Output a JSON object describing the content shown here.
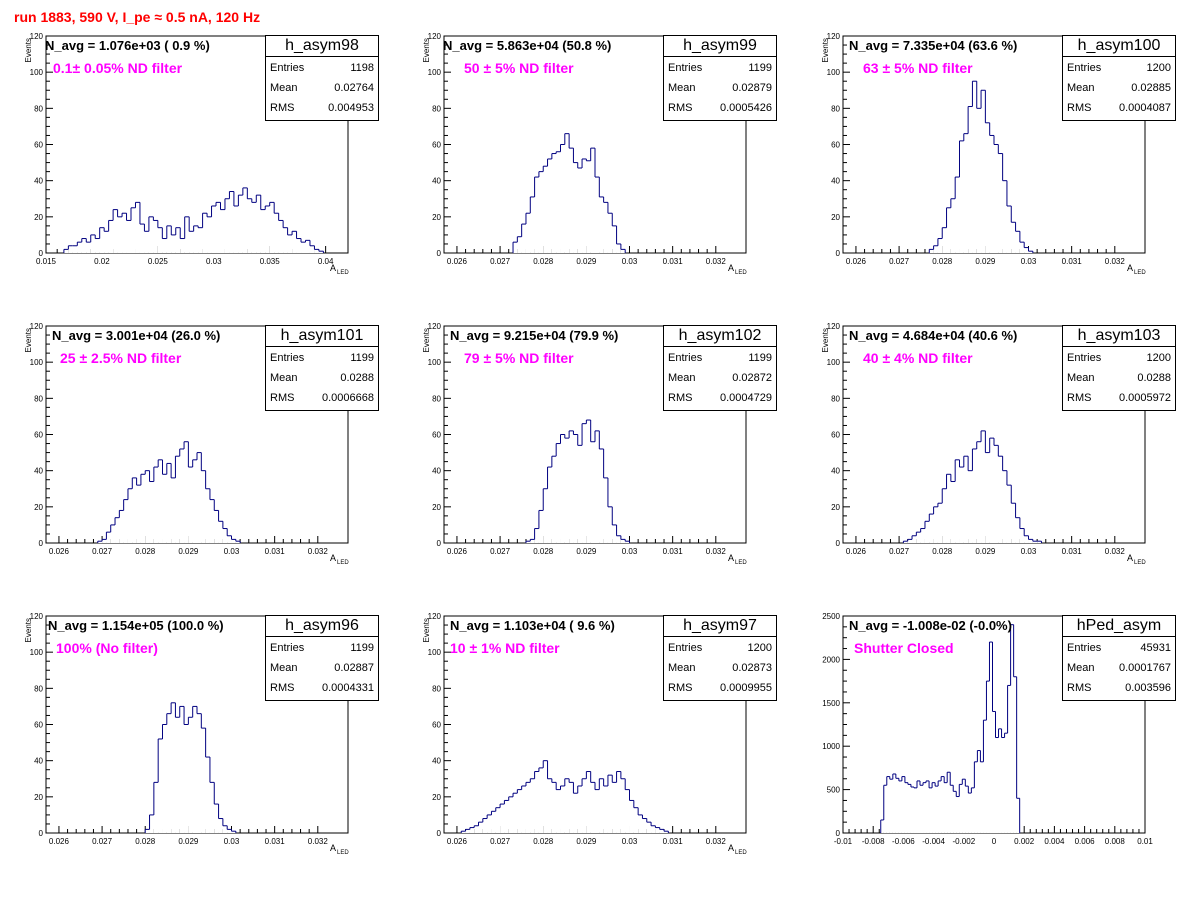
{
  "title": "run 1883,   590 V, I_pe ≈ 0.5 nA, 120 Hz",
  "colors": {
    "title": "#ff0000",
    "filter": "#ff00ff",
    "hist": "#000080"
  },
  "chart_data": [
    {
      "type": "bar",
      "name": "h_asym98",
      "navg": "N_avg = 1.076e+03 ( 0.9 %)",
      "filter": "0.1± 0.05% ND filter",
      "stats": [
        {
          "label": "Entries",
          "value": "1198"
        },
        {
          "label": "Mean",
          "value": "0.02764"
        },
        {
          "label": "RMS",
          "value": "0.004953"
        }
      ],
      "xlim": [
        0.015,
        0.042
      ],
      "xticks": [
        0.015,
        0.02,
        0.025,
        0.03,
        0.035,
        0.04
      ],
      "xtick_labels": [
        "0.015",
        "0.02",
        "0.025",
        "0.03",
        "0.035",
        "0.04"
      ],
      "ylim": [
        0,
        120
      ],
      "yticks": [
        0,
        20,
        40,
        60,
        80,
        100,
        120
      ],
      "ylabel": "Events",
      "xlabel": "A",
      "xlabel_sub": "LED",
      "bins": {
        "start": 0.0166,
        "width": 0.0004,
        "counts": [
          2,
          4,
          4,
          6,
          8,
          6,
          10,
          8,
          14,
          12,
          18,
          24,
          20,
          22,
          18,
          25,
          28,
          16,
          12,
          20,
          18,
          14,
          8,
          15,
          10,
          14,
          8,
          20,
          12,
          15,
          14,
          22,
          20,
          26,
          28,
          24,
          30,
          34,
          26,
          32,
          36,
          30,
          28,
          32,
          24,
          26,
          28,
          22,
          18,
          14,
          10,
          12,
          8,
          6,
          7,
          4,
          2,
          1
        ]
      }
    },
    {
      "type": "bar",
      "name": "h_asym99",
      "navg": "N_avg = 5.863e+04 (50.8 %)",
      "filter": "50 ± 5% ND filter",
      "stats": [
        {
          "label": "Entries",
          "value": "1199"
        },
        {
          "label": "Mean",
          "value": "0.02879"
        },
        {
          "label": "RMS",
          "value": "0.0005426"
        }
      ],
      "xlim": [
        0.0257,
        0.0327
      ],
      "xticks": [
        0.026,
        0.027,
        0.028,
        0.029,
        0.03,
        0.031,
        0.032
      ],
      "xtick_labels": [
        "0.026",
        "0.027",
        "0.028",
        "0.029",
        "0.03",
        "0.031",
        "0.032"
      ],
      "ylim": [
        0,
        120
      ],
      "yticks": [
        0,
        20,
        40,
        60,
        80,
        100,
        120
      ],
      "ylabel": "Events",
      "xlabel": "A",
      "xlabel_sub": "LED",
      "bins": {
        "start": 0.0273,
        "width": 0.0001,
        "counts": [
          6,
          9,
          16,
          22,
          31,
          42,
          45,
          48,
          52,
          55,
          56,
          60,
          66,
          58,
          50,
          47,
          52,
          51,
          58,
          42,
          31,
          28,
          22,
          15,
          5,
          2
        ]
      }
    },
    {
      "type": "bar",
      "name": "h_asym100",
      "navg": "N_avg = 7.335e+04 (63.6 %)",
      "filter": "63 ± 5% ND filter",
      "stats": [
        {
          "label": "Entries",
          "value": "1200"
        },
        {
          "label": "Mean",
          "value": "0.02885"
        },
        {
          "label": "RMS",
          "value": "0.0004087"
        }
      ],
      "xlim": [
        0.0257,
        0.0327
      ],
      "xticks": [
        0.026,
        0.027,
        0.028,
        0.029,
        0.03,
        0.031,
        0.032
      ],
      "xtick_labels": [
        "0.026",
        "0.027",
        "0.028",
        "0.029",
        "0.03",
        "0.031",
        "0.032"
      ],
      "ylim": [
        0,
        120
      ],
      "yticks": [
        0,
        20,
        40,
        60,
        80,
        100,
        120
      ],
      "ylabel": "Events",
      "xlabel": "A",
      "xlabel_sub": "LED",
      "bins": {
        "start": 0.0277,
        "width": 0.0001,
        "counts": [
          2,
          4,
          8,
          14,
          25,
          30,
          42,
          62,
          66,
          81,
          95,
          80,
          90,
          72,
          65,
          60,
          55,
          40,
          26,
          17,
          12,
          6,
          3,
          1
        ]
      }
    },
    {
      "type": "bar",
      "name": "h_asym101",
      "navg": "N_avg = 3.001e+04 (26.0 %)",
      "filter": "25 ± 2.5% ND filter",
      "stats": [
        {
          "label": "Entries",
          "value": "1199"
        },
        {
          "label": "Mean",
          "value": "0.0288"
        },
        {
          "label": "RMS",
          "value": "0.0006668"
        }
      ],
      "xlim": [
        0.0257,
        0.0327
      ],
      "xticks": [
        0.026,
        0.027,
        0.028,
        0.029,
        0.03,
        0.031,
        0.032
      ],
      "xtick_labels": [
        "0.026",
        "0.027",
        "0.028",
        "0.029",
        "0.03",
        "0.031",
        "0.032"
      ],
      "ylim": [
        0,
        120
      ],
      "yticks": [
        0,
        20,
        40,
        60,
        80,
        100,
        120
      ],
      "ylabel": "Events",
      "xlabel": "A",
      "xlabel_sub": "LED",
      "bins": {
        "start": 0.0269,
        "width": 0.0001,
        "counts": [
          1,
          2,
          6,
          10,
          14,
          18,
          24,
          30,
          36,
          32,
          38,
          40,
          34,
          42,
          46,
          38,
          44,
          36,
          48,
          52,
          56,
          42,
          46,
          50,
          40,
          30,
          24,
          18,
          12,
          8,
          4,
          2,
          1
        ]
      }
    },
    {
      "type": "bar",
      "name": "h_asym102",
      "navg": "N_avg = 9.215e+04 (79.9 %)",
      "filter": "79 ± 5% ND filter",
      "stats": [
        {
          "label": "Entries",
          "value": "1199"
        },
        {
          "label": "Mean",
          "value": "0.02872"
        },
        {
          "label": "RMS",
          "value": "0.0004729"
        }
      ],
      "xlim": [
        0.0257,
        0.0327
      ],
      "xticks": [
        0.026,
        0.027,
        0.028,
        0.029,
        0.03,
        0.031,
        0.032
      ],
      "xtick_labels": [
        "0.026",
        "0.027",
        "0.028",
        "0.029",
        "0.03",
        "0.031",
        "0.032"
      ],
      "ylim": [
        0,
        120
      ],
      "yticks": [
        0,
        20,
        40,
        60,
        80,
        100,
        120
      ],
      "ylabel": "Events",
      "xlabel": "A",
      "xlabel_sub": "LED",
      "bins": {
        "start": 0.0276,
        "width": 0.0001,
        "counts": [
          1,
          2,
          8,
          18,
          30,
          42,
          48,
          55,
          60,
          58,
          62,
          60,
          54,
          66,
          68,
          56,
          62,
          52,
          36,
          20,
          10,
          4,
          2,
          1
        ]
      }
    },
    {
      "type": "bar",
      "name": "h_asym103",
      "navg": "N_avg = 4.684e+04 (40.6 %)",
      "filter": "40 ± 4% ND filter",
      "stats": [
        {
          "label": "Entries",
          "value": "1200"
        },
        {
          "label": "Mean",
          "value": "0.0288"
        },
        {
          "label": "RMS",
          "value": "0.0005972"
        }
      ],
      "xlim": [
        0.0257,
        0.0327
      ],
      "xticks": [
        0.026,
        0.027,
        0.028,
        0.029,
        0.03,
        0.031,
        0.032
      ],
      "xtick_labels": [
        "0.026",
        "0.027",
        "0.028",
        "0.029",
        "0.03",
        "0.031",
        "0.032"
      ],
      "ylim": [
        0,
        120
      ],
      "yticks": [
        0,
        20,
        40,
        60,
        80,
        100,
        120
      ],
      "ylabel": "Events",
      "xlabel": "A",
      "xlabel_sub": "LED",
      "bins": {
        "start": 0.0271,
        "width": 0.0001,
        "counts": [
          1,
          2,
          4,
          6,
          8,
          12,
          16,
          20,
          22,
          30,
          38,
          34,
          46,
          42,
          48,
          40,
          52,
          56,
          62,
          50,
          58,
          54,
          48,
          40,
          32,
          22,
          14,
          8,
          4,
          2,
          1,
          1
        ]
      }
    },
    {
      "type": "bar",
      "name": "h_asym96",
      "navg": "N_avg = 1.154e+05 (100.0 %)",
      "filter": "100% (No filter)",
      "stats": [
        {
          "label": "Entries",
          "value": "1199"
        },
        {
          "label": "Mean",
          "value": "0.02887"
        },
        {
          "label": "RMS",
          "value": "0.0004331"
        }
      ],
      "xlim": [
        0.0257,
        0.0327
      ],
      "xticks": [
        0.026,
        0.027,
        0.028,
        0.029,
        0.03,
        0.031,
        0.032
      ],
      "xtick_labels": [
        "0.026",
        "0.027",
        "0.028",
        "0.029",
        "0.03",
        "0.031",
        "0.032"
      ],
      "ylim": [
        0,
        120
      ],
      "yticks": [
        0,
        20,
        40,
        60,
        80,
        100,
        120
      ],
      "ylabel": "Events",
      "xlabel": "A",
      "xlabel_sub": "LED",
      "bins": {
        "start": 0.028,
        "width": 0.0001,
        "counts": [
          2,
          10,
          28,
          52,
          60,
          66,
          72,
          64,
          70,
          60,
          64,
          70,
          66,
          58,
          42,
          28,
          16,
          8,
          4,
          2,
          1
        ]
      }
    },
    {
      "type": "bar",
      "name": "h_asym97",
      "navg": "N_avg = 1.103e+04 ( 9.6 %)",
      "filter": "10 ± 1% ND filter",
      "stats": [
        {
          "label": "Entries",
          "value": "1200"
        },
        {
          "label": "Mean",
          "value": "0.02873"
        },
        {
          "label": "RMS",
          "value": "0.0009955"
        }
      ],
      "xlim": [
        0.0257,
        0.0327
      ],
      "xticks": [
        0.026,
        0.027,
        0.028,
        0.029,
        0.03,
        0.031,
        0.032
      ],
      "xtick_labels": [
        "0.026",
        "0.027",
        "0.028",
        "0.029",
        "0.03",
        "0.031",
        "0.032"
      ],
      "ylim": [
        0,
        120
      ],
      "yticks": [
        0,
        20,
        40,
        60,
        80,
        100,
        120
      ],
      "ylabel": "Events",
      "xlabel": "A",
      "xlabel_sub": "LED",
      "bins": {
        "start": 0.0261,
        "width": 0.0001,
        "counts": [
          1,
          2,
          3,
          4,
          6,
          8,
          10,
          12,
          14,
          16,
          18,
          20,
          22,
          24,
          26,
          28,
          30,
          34,
          36,
          40,
          30,
          28,
          24,
          26,
          30,
          28,
          22,
          26,
          30,
          34,
          28,
          24,
          30,
          26,
          32,
          28,
          34,
          30,
          24,
          18,
          14,
          10,
          8,
          6,
          4,
          3,
          2,
          1
        ]
      }
    },
    {
      "type": "bar",
      "name": "hPed_asym",
      "navg": "N_avg = -1.008e-02 (-0.0%)",
      "filter": "Shutter Closed",
      "stats": [
        {
          "label": "Entries",
          "value": "45931"
        },
        {
          "label": "Mean",
          "value": "0.0001767"
        },
        {
          "label": "RMS",
          "value": "0.003596"
        }
      ],
      "xlim": [
        -0.01,
        0.01
      ],
      "xticks": [
        -0.01,
        -0.008,
        -0.006,
        -0.004,
        -0.002,
        0,
        0.002,
        0.004,
        0.006,
        0.008,
        0.01
      ],
      "xtick_labels": [
        "-0.01",
        "-0.008",
        "-0.006",
        "-0.004",
        "-0.002",
        "0",
        "0.002",
        "0.004",
        "0.006",
        "0.008",
        "0.01"
      ],
      "ylim": [
        0,
        2500
      ],
      "yticks": [
        0,
        500,
        1000,
        1500,
        2000,
        2500
      ],
      "ylabel": "",
      "xlabel": "",
      "xlabel_sub": "",
      "bins": {
        "start": -0.0075,
        "width": 0.0002,
        "counts": [
          150,
          550,
          650,
          620,
          680,
          630,
          600,
          650,
          580,
          560,
          530,
          520,
          600,
          550,
          580,
          600,
          520,
          580,
          540,
          600,
          650,
          580,
          700,
          550,
          480,
          420,
          560,
          620,
          540,
          460,
          520,
          820,
          950,
          820,
          1300,
          1750,
          2200,
          1400,
          1100,
          1200,
          1100,
          1150,
          1700,
          2400,
          1800,
          400
        ]
      }
    }
  ]
}
